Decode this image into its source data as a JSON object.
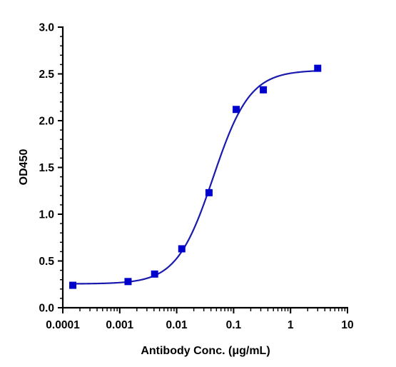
{
  "chart_data": {
    "type": "scatter",
    "title": "",
    "xlabel": "Antibody Conc. (μg/mL)",
    "ylabel": "OD450",
    "x_scale": "log",
    "xlim": [
      0.0001,
      10
    ],
    "ylim": [
      0,
      3.0
    ],
    "x_ticks": [
      0.0001,
      0.001,
      0.01,
      0.1,
      1,
      10
    ],
    "x_tick_labels": [
      "0.0001",
      "0.001",
      "0.01",
      "0.1",
      "1",
      "10"
    ],
    "y_ticks": [
      0,
      0.5,
      1.0,
      1.5,
      2.0,
      2.5,
      3.0
    ],
    "y_tick_labels": [
      "0.0",
      "0.5",
      "1.0",
      "1.5",
      "2.0",
      "2.5",
      "3.0"
    ],
    "grid": false,
    "legend": "none",
    "color": "#0000CC",
    "curve_color": "#1A1AB0",
    "series": [
      {
        "x": [
          0.00015,
          0.0014,
          0.0041,
          0.0123,
          0.037,
          0.111,
          0.333,
          3.0
        ],
        "y": [
          0.24,
          0.28,
          0.36,
          0.63,
          1.23,
          2.12,
          2.33,
          2.56
        ]
      }
    ],
    "fit_curve": {
      "model": "4PL",
      "bottom": 0.255,
      "top": 2.54,
      "ec50": 0.044,
      "hill": 1.35
    }
  }
}
